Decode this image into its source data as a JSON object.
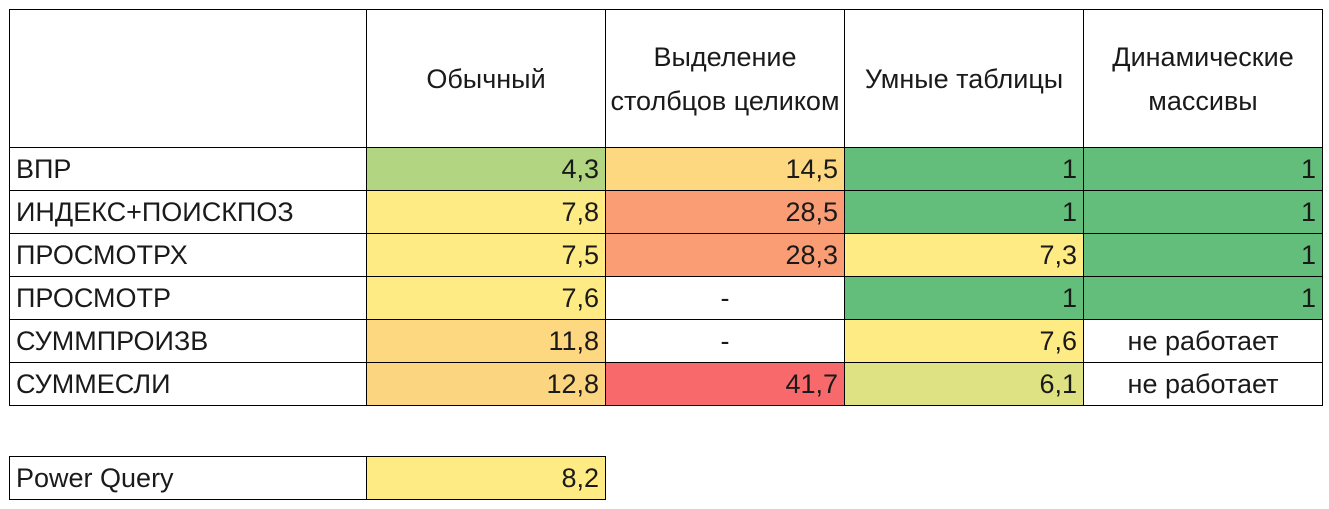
{
  "headers": {
    "row_label": "",
    "col1": "Обычный",
    "col2": "Выделение столбцов целиком",
    "col3": "Умные таблицы",
    "col4": "Динамические массивы"
  },
  "rows": [
    {
      "label": "ВПР",
      "c1": "4,3",
      "c2": "14,5",
      "c3": "1",
      "c4": "1"
    },
    {
      "label": "ИНДЕКС+ПОИСКПОЗ",
      "c1": "7,8",
      "c2": "28,5",
      "c3": "1",
      "c4": "1"
    },
    {
      "label": "ПРОСМОТРХ",
      "c1": "7,5",
      "c2": "28,3",
      "c3": "7,3",
      "c4": "1"
    },
    {
      "label": "ПРОСМОТР",
      "c1": "7,6",
      "c2": "-",
      "c3": "1",
      "c4": "1"
    },
    {
      "label": "СУММПРОИЗВ",
      "c1": "11,8",
      "c2": "-",
      "c3": "7,6",
      "c4": "не работает"
    },
    {
      "label": "СУММЕСЛИ",
      "c1": "12,8",
      "c2": "41,7",
      "c3": "6,1",
      "c4": "не работает"
    }
  ],
  "power_query": {
    "label": "Power Query",
    "value": "8,2"
  },
  "colors": {
    "green_dark": "#63be7b",
    "green_light": "#b1d580",
    "yellow": "#ffeb84",
    "yellow_green": "#dfe283",
    "orange_light": "#fed880",
    "orange": "#fcd580",
    "salmon": "#fa9d75",
    "red": "#f8696b",
    "white": "#ffffff"
  }
}
